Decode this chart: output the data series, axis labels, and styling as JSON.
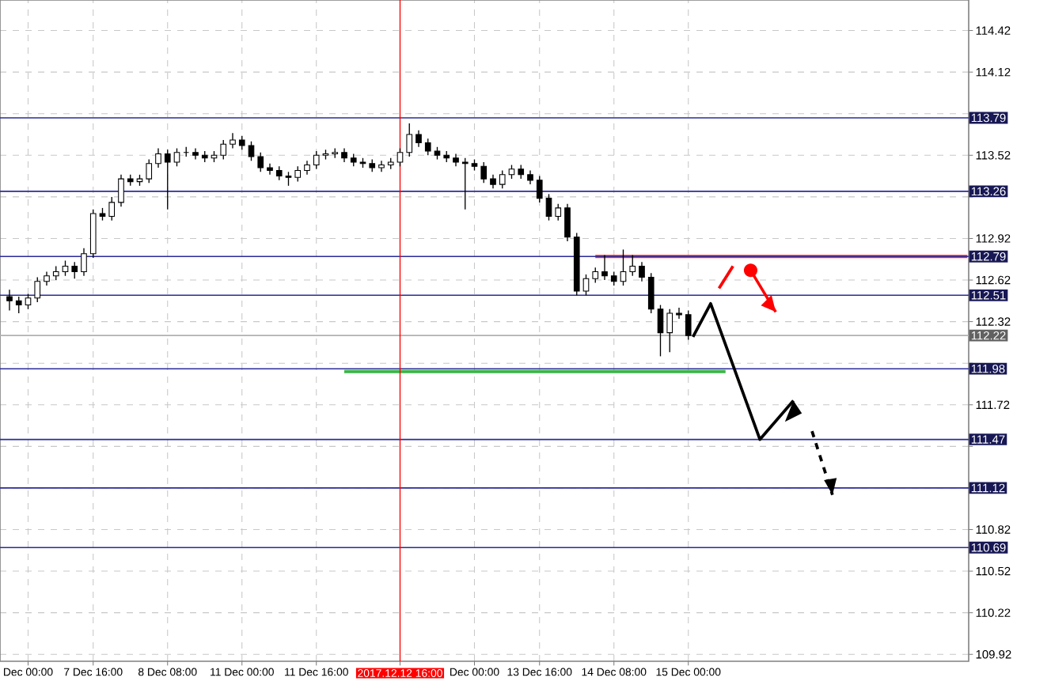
{
  "chart_data": {
    "type": "candlestick",
    "color": "#000000",
    "categories": [
      null,
      null,
      "Dec 00:00",
      null,
      null,
      null,
      null,
      null,
      null,
      "7 Dec 16:00",
      null,
      null,
      null,
      null,
      null,
      null,
      null,
      "8 Dec 08:00",
      null,
      null,
      null,
      null,
      null,
      null,
      null,
      "11 Dec 00:00",
      null,
      null,
      null,
      null,
      null,
      null,
      null,
      "11 Dec 16:00",
      null,
      null,
      null,
      null,
      null,
      null,
      null,
      null,
      "2017.12.12 16:00",
      null,
      null,
      null,
      null,
      null,
      null,
      null,
      "Dec 00:00",
      null,
      null,
      null,
      null,
      null,
      null,
      "13 Dec 16:00",
      null,
      null,
      null,
      null,
      null,
      null,
      null,
      "14 Dec 08:00",
      null,
      null,
      null,
      null,
      null,
      null,
      null,
      "15 Dec 00:00",
      null,
      null,
      null,
      null,
      null,
      null,
      null,
      null,
      null,
      null,
      null,
      null,
      null,
      null,
      null,
      null,
      null,
      null,
      null,
      null,
      null,
      null,
      null,
      null,
      null,
      null,
      null,
      null,
      null,
      null
    ],
    "ohlc": [
      [
        112.5,
        112.55,
        112.4,
        112.47
      ],
      [
        112.47,
        112.5,
        112.38,
        112.44
      ],
      [
        112.44,
        112.52,
        112.41,
        112.49
      ],
      [
        112.49,
        112.64,
        112.46,
        112.61
      ],
      [
        112.61,
        112.68,
        112.58,
        112.65
      ],
      [
        112.65,
        112.72,
        112.62,
        112.68
      ],
      [
        112.68,
        112.76,
        112.65,
        112.72
      ],
      [
        112.72,
        112.75,
        112.63,
        112.68
      ],
      [
        112.68,
        112.85,
        112.65,
        112.81
      ],
      [
        112.81,
        113.13,
        112.78,
        113.1
      ],
      [
        113.1,
        113.14,
        113.05,
        113.08
      ],
      [
        113.08,
        113.22,
        113.05,
        113.18
      ],
      [
        113.18,
        113.38,
        113.15,
        113.35
      ],
      [
        113.35,
        113.38,
        113.3,
        113.33
      ],
      [
        113.33,
        113.38,
        113.3,
        113.35
      ],
      [
        113.35,
        113.49,
        113.32,
        113.46
      ],
      [
        113.46,
        113.57,
        113.43,
        113.53
      ],
      [
        113.53,
        113.56,
        113.13,
        113.47
      ],
      [
        113.47,
        113.57,
        113.44,
        113.54
      ],
      [
        113.54,
        113.58,
        113.51,
        113.54
      ],
      [
        113.54,
        113.57,
        113.49,
        113.52
      ],
      [
        113.52,
        113.55,
        113.47,
        113.5
      ],
      [
        113.5,
        113.55,
        113.47,
        113.52
      ],
      [
        113.52,
        113.63,
        113.49,
        113.6
      ],
      [
        113.6,
        113.68,
        113.57,
        113.63
      ],
      [
        113.63,
        113.66,
        113.56,
        113.59
      ],
      [
        113.59,
        113.62,
        113.48,
        113.51
      ],
      [
        113.51,
        113.54,
        113.4,
        113.43
      ],
      [
        113.43,
        113.46,
        113.38,
        113.41
      ],
      [
        113.41,
        113.44,
        113.34,
        113.37
      ],
      [
        113.37,
        113.4,
        113.3,
        113.36
      ],
      [
        113.36,
        113.44,
        113.33,
        113.41
      ],
      [
        113.41,
        113.48,
        113.38,
        113.45
      ],
      [
        113.45,
        113.55,
        113.42,
        113.52
      ],
      [
        113.52,
        113.56,
        113.49,
        113.53
      ],
      [
        113.53,
        113.57,
        113.5,
        113.54
      ],
      [
        113.54,
        113.57,
        113.47,
        113.5
      ],
      [
        113.5,
        113.53,
        113.44,
        113.47
      ],
      [
        113.47,
        113.5,
        113.43,
        113.46
      ],
      [
        113.46,
        113.49,
        113.4,
        113.43
      ],
      [
        113.43,
        113.48,
        113.4,
        113.45
      ],
      [
        113.45,
        113.5,
        113.42,
        113.47
      ],
      [
        113.47,
        113.57,
        113.44,
        113.54
      ],
      [
        113.54,
        113.75,
        113.51,
        113.67
      ],
      [
        113.67,
        113.7,
        113.58,
        113.61
      ],
      [
        113.61,
        113.64,
        113.52,
        113.55
      ],
      [
        113.55,
        113.58,
        113.49,
        113.52
      ],
      [
        113.52,
        113.55,
        113.47,
        113.5
      ],
      [
        113.5,
        113.53,
        113.44,
        113.47
      ],
      [
        113.47,
        113.5,
        113.13,
        113.46
      ],
      [
        113.46,
        113.49,
        113.41,
        113.44
      ],
      [
        113.44,
        113.47,
        113.32,
        113.35
      ],
      [
        113.35,
        113.38,
        113.28,
        113.31
      ],
      [
        113.31,
        113.41,
        113.28,
        113.38
      ],
      [
        113.38,
        113.45,
        113.35,
        113.42
      ],
      [
        113.42,
        113.45,
        113.35,
        113.38
      ],
      [
        113.38,
        113.41,
        113.31,
        113.34
      ],
      [
        113.34,
        113.37,
        113.18,
        113.21
      ],
      [
        113.21,
        113.24,
        113.05,
        113.08
      ],
      [
        113.08,
        113.17,
        113.05,
        113.14
      ],
      [
        113.14,
        113.17,
        112.9,
        112.93
      ],
      [
        112.93,
        112.96,
        112.51,
        112.54
      ],
      [
        112.54,
        112.66,
        112.51,
        112.63
      ],
      [
        112.63,
        112.71,
        112.6,
        112.68
      ],
      [
        112.68,
        112.8,
        112.62,
        112.65
      ],
      [
        112.65,
        112.68,
        112.58,
        112.61
      ],
      [
        112.61,
        112.84,
        112.58,
        112.68
      ],
      [
        112.68,
        112.8,
        112.65,
        112.72
      ],
      [
        112.72,
        112.75,
        112.61,
        112.64
      ],
      [
        112.64,
        112.67,
        112.38,
        112.41
      ],
      [
        112.41,
        112.44,
        112.07,
        112.24
      ],
      [
        112.24,
        112.41,
        112.1,
        112.38
      ],
      [
        112.38,
        112.42,
        112.34,
        112.37
      ],
      [
        112.37,
        112.4,
        112.19,
        112.22
      ],
      null,
      null,
      null,
      null,
      null,
      null,
      null,
      null,
      null,
      null,
      null,
      null,
      null,
      null,
      null,
      null,
      null,
      null,
      null,
      null,
      null,
      null,
      null,
      null,
      null,
      null,
      null,
      null,
      null,
      null
    ],
    "series": [
      {
        "type": "line",
        "color": "#ff2020",
        "values": [
          null,
          null,
          null,
          null,
          null,
          null,
          null,
          null,
          null,
          null,
          null,
          null,
          null,
          null,
          null,
          null,
          null,
          null,
          null,
          null,
          null,
          null,
          null,
          null,
          null,
          null,
          null,
          null,
          null,
          null,
          null,
          null,
          null,
          null,
          null,
          null,
          null,
          null,
          null,
          null,
          null,
          null,
          null,
          null,
          null,
          null,
          null,
          null,
          null,
          null,
          null,
          null,
          null,
          null,
          null,
          null,
          null,
          null,
          null,
          null,
          null,
          null,
          null,
          112.79,
          112.79,
          112.79,
          112.79,
          112.79,
          112.79,
          112.79,
          112.79,
          112.79,
          112.79,
          112.79,
          112.79,
          112.79,
          112.79,
          112.79,
          112.79,
          112.79,
          112.79,
          112.79,
          112.79,
          112.79,
          112.79,
          112.79,
          112.79,
          112.79,
          112.79,
          112.79,
          112.79,
          112.79,
          112.79,
          112.79,
          112.79,
          112.79,
          112.79,
          112.79,
          112.79,
          112.79,
          112.79,
          112.79,
          112.79,
          112.79
        ]
      },
      {
        "type": "line",
        "color": "#3cb44b",
        "values": [
          null,
          null,
          null,
          null,
          null,
          null,
          null,
          null,
          null,
          null,
          null,
          null,
          null,
          null,
          null,
          null,
          null,
          null,
          null,
          null,
          null,
          null,
          null,
          null,
          null,
          null,
          null,
          null,
          null,
          null,
          null,
          null,
          null,
          null,
          null,
          null,
          111.96,
          111.96,
          111.96,
          111.96,
          111.96,
          111.96,
          111.96,
          111.96,
          111.96,
          111.96,
          111.96,
          111.96,
          111.96,
          111.96,
          111.96,
          111.96,
          111.96,
          111.96,
          111.96,
          111.96,
          111.96,
          111.96,
          111.96,
          111.96,
          111.96,
          111.96,
          111.96,
          111.96,
          111.96,
          111.96,
          111.96,
          111.96,
          111.96,
          111.96,
          111.96,
          111.96,
          111.96,
          111.96,
          111.96,
          111.96,
          111.96,
          111.96,
          null,
          null,
          null,
          null,
          null,
          null,
          null,
          null,
          null,
          null,
          null,
          null,
          null,
          null,
          null,
          null,
          null,
          null,
          null,
          null,
          null,
          null,
          null,
          null,
          null,
          null
        ]
      }
    ],
    "ylim": [
      109.87,
      114.64
    ],
    "yticks": [
      114.42,
      114.12,
      {
        "value": 113.82,
        "label": null
      },
      113.52,
      {
        "value": 113.22,
        "label": null
      },
      112.92,
      112.62,
      112.32,
      {
        "value": 112.02,
        "label": null
      },
      111.72,
      {
        "value": 111.42,
        "label": null
      },
      {
        "value": 111.12,
        "label": null
      },
      110.82,
      110.52,
      110.22,
      109.92
    ],
    "ref_lines": [
      {
        "axis": "y",
        "value": 113.79,
        "label": "113.79",
        "color": "#2b2b9a"
      },
      {
        "axis": "y",
        "value": 113.26,
        "label": "113.26",
        "color": "#2b2b9a"
      },
      {
        "axis": "y",
        "value": 112.79,
        "label": "112.79",
        "color": "#2b2b9a"
      },
      {
        "axis": "y",
        "value": 112.51,
        "label": "112.51",
        "color": "#2b2b9a"
      },
      {
        "axis": "y",
        "value": 112.22,
        "label": "112.22",
        "color": "#b0b0b0"
      },
      {
        "axis": "y",
        "value": 111.98,
        "label": "111.98",
        "color": "#2b2b9a"
      },
      {
        "axis": "y",
        "value": 111.47,
        "label": "111.47",
        "color": "#2b2b9a"
      },
      {
        "axis": "y",
        "value": 111.12,
        "label": "111.12",
        "color": "#2b2b9a"
      },
      {
        "axis": "y",
        "value": 110.69,
        "label": "110.69",
        "color": "#2b2b9a"
      },
      {
        "axis": "x",
        "value": "2017.12.12 16:00",
        "color": "#ff0000"
      }
    ],
    "grid": true,
    "legend": false
  }
}
